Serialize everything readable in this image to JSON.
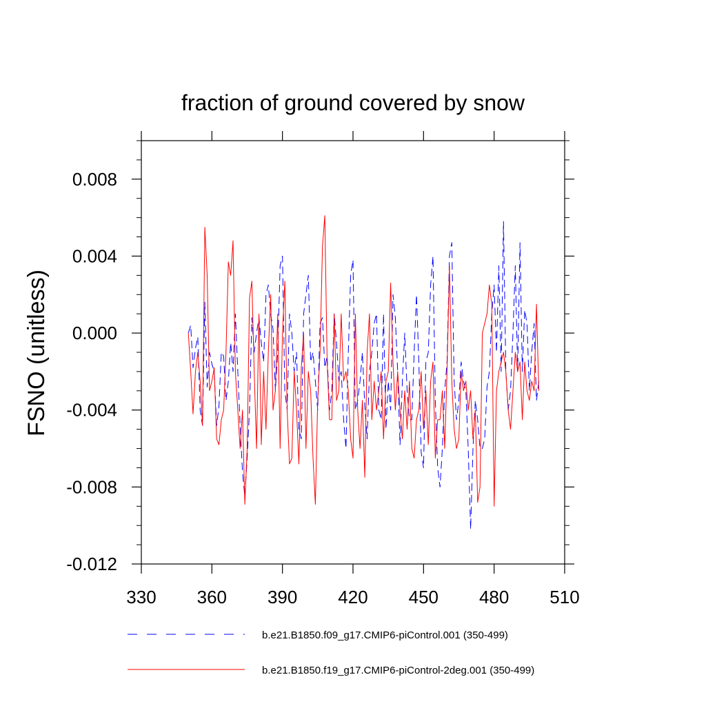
{
  "chart_data": {
    "type": "line",
    "title": "fraction of ground covered by snow",
    "xlabel": "",
    "ylabel": "FSNO  (unitless)",
    "xlim": [
      330,
      510
    ],
    "ylim": [
      -0.012,
      0.01
    ],
    "xticks": [
      330,
      360,
      390,
      420,
      450,
      480,
      510
    ],
    "xtick_labels": [
      "330",
      "360",
      "390",
      "420",
      "450",
      "480",
      "510"
    ],
    "yticks": [
      -0.012,
      -0.008,
      -0.004,
      0.0,
      0.004,
      0.008
    ],
    "ytick_labels": [
      "-0.012",
      "-0.008",
      "-0.004",
      "0.000",
      "0.004",
      "0.008"
    ],
    "grid": false,
    "legend_position": "bottom",
    "series": [
      {
        "name": "b.e21.B1850.f09_g17.CMIP6-piControl.001 (350-499)",
        "color": "#0000ff",
        "dash": "dashed",
        "x": [
          350,
          351,
          352,
          353,
          354,
          355,
          356,
          357,
          358,
          359,
          360,
          361,
          362,
          363,
          364,
          365,
          366,
          367,
          368,
          369,
          370,
          371,
          372,
          373,
          374,
          375,
          376,
          377,
          378,
          379,
          380,
          381,
          382,
          383,
          384,
          385,
          386,
          387,
          388,
          389,
          390,
          391,
          392,
          393,
          394,
          395,
          396,
          397,
          398,
          399,
          400,
          401,
          402,
          403,
          404,
          405,
          406,
          407,
          408,
          409,
          410,
          411,
          412,
          413,
          414,
          415,
          416,
          417,
          418,
          419,
          420,
          421,
          422,
          423,
          424,
          425,
          426,
          427,
          428,
          429,
          430,
          431,
          432,
          433,
          434,
          435,
          436,
          437,
          438,
          439,
          440,
          441,
          442,
          443,
          444,
          445,
          446,
          447,
          448,
          449,
          450,
          451,
          452,
          453,
          454,
          455,
          456,
          457,
          458,
          459,
          460,
          461,
          462,
          463,
          464,
          465,
          466,
          467,
          468,
          469,
          470,
          471,
          472,
          473,
          474,
          475,
          476,
          477,
          478,
          479,
          480,
          481,
          482,
          483,
          484,
          485,
          486,
          487,
          488,
          489,
          490,
          491,
          492,
          493,
          494,
          495,
          496,
          497,
          498,
          499
        ],
        "y": [
          0.0,
          0.0004,
          -0.0018,
          -0.0008,
          -0.0002,
          -0.004,
          -0.0048,
          0.0016,
          -0.0028,
          -0.001,
          -0.0016,
          -0.002,
          -0.0048,
          -0.0038,
          -0.001,
          -0.0012,
          -0.0035,
          -0.0025,
          -0.0005,
          -0.002,
          0.001,
          -0.002,
          -0.0048,
          -0.0072,
          -0.0085,
          -0.0065,
          -0.004,
          0.0008,
          -0.001,
          0.0,
          0.0008,
          -0.0005,
          -0.0015,
          0.002,
          0.0025,
          0.001,
          0.0002,
          -0.003,
          -0.001,
          0.0035,
          0.004,
          -0.003,
          -0.004,
          0.001,
          0.0,
          -0.002,
          -0.001,
          -0.005,
          -0.0055,
          0.001,
          0.002,
          0.003,
          -0.0015,
          -0.001,
          -0.0025,
          -0.004,
          0.0005,
          0.0008,
          -0.0018,
          -0.0012,
          -0.004,
          -0.003,
          0.001,
          -0.0005,
          -0.0025,
          -0.002,
          -0.0045,
          -0.006,
          -0.001,
          0.003,
          0.0038,
          -0.004,
          -0.0035,
          -0.0025,
          -0.001,
          -0.0038,
          -0.0055,
          -0.002,
          -0.001,
          0.0005,
          0.001,
          -0.004,
          -0.0045,
          0.001,
          -0.005,
          -0.0025,
          -0.004,
          0.002,
          0.0008,
          -0.002,
          -0.0058,
          -0.0025,
          0.0,
          -0.003,
          -0.0045,
          -0.0045,
          -0.001,
          0.002,
          -0.0015,
          -0.0062,
          -0.007,
          -0.0015,
          -0.001,
          0.0025,
          0.004,
          -0.0035,
          -0.007,
          -0.008,
          -0.006,
          -0.003,
          -0.0015,
          0.004,
          0.0047,
          -0.0025,
          -0.0045,
          -0.0035,
          -0.0015,
          -0.0025,
          -0.003,
          -0.006,
          -0.0102,
          -0.006,
          -0.0035,
          -0.0045,
          -0.006,
          -0.006,
          -0.0055,
          -0.0028,
          -0.002,
          0.001,
          0.0025,
          -0.001,
          0.0035,
          -0.002,
          0.0058,
          -0.002,
          -0.004,
          -0.003,
          0.0,
          0.0035,
          -0.002,
          0.0047,
          -0.002,
          0.0012,
          0.0005,
          -0.003,
          -0.001,
          0.0005,
          -0.0035,
          -0.0025
        ]
      },
      {
        "name": "b.e21.B1850.f19_g17.CMIP6-piControl-2deg.001 (350-499)",
        "color": "#ff0000",
        "dash": "solid",
        "x": [
          350,
          351,
          352,
          353,
          354,
          355,
          356,
          357,
          358,
          359,
          360,
          361,
          362,
          363,
          364,
          365,
          366,
          367,
          368,
          369,
          370,
          371,
          372,
          373,
          374,
          375,
          376,
          377,
          378,
          379,
          380,
          381,
          382,
          383,
          384,
          385,
          386,
          387,
          388,
          389,
          390,
          391,
          392,
          393,
          394,
          395,
          396,
          397,
          398,
          399,
          400,
          401,
          402,
          403,
          404,
          405,
          406,
          407,
          408,
          409,
          410,
          411,
          412,
          413,
          414,
          415,
          416,
          417,
          418,
          419,
          420,
          421,
          422,
          423,
          424,
          425,
          426,
          427,
          428,
          429,
          430,
          431,
          432,
          433,
          434,
          435,
          436,
          437,
          438,
          439,
          440,
          441,
          442,
          443,
          444,
          445,
          446,
          447,
          448,
          449,
          450,
          451,
          452,
          453,
          454,
          455,
          456,
          457,
          458,
          459,
          460,
          461,
          462,
          463,
          464,
          465,
          466,
          467,
          468,
          469,
          470,
          471,
          472,
          473,
          474,
          475,
          476,
          477,
          478,
          479,
          480,
          481,
          482,
          483,
          484,
          485,
          486,
          487,
          488,
          489,
          490,
          491,
          492,
          493,
          494,
          495,
          496,
          497,
          498,
          499
        ],
        "y": [
          0.0,
          -0.002,
          -0.0042,
          -0.002,
          -0.001,
          -0.0025,
          -0.0048,
          0.0055,
          0.003,
          -0.003,
          -0.0025,
          -0.0018,
          -0.0055,
          -0.0058,
          -0.0045,
          -0.004,
          -0.001,
          0.0037,
          0.003,
          0.0048,
          -0.002,
          -0.004,
          -0.006,
          -0.004,
          -0.0089,
          -0.006,
          0.0018,
          0.0027,
          -0.002,
          -0.006,
          0.001,
          -0.0058,
          -0.002,
          -0.005,
          -0.001,
          0.002,
          -0.004,
          -0.003,
          0.001,
          -0.006,
          0.0,
          0.0027,
          -0.004,
          -0.0068,
          -0.0065,
          -0.002,
          -0.004,
          -0.0068,
          -0.0018,
          0.0,
          -0.006,
          -0.002,
          -0.003,
          -0.0065,
          -0.0089,
          -0.0035,
          -0.001,
          0.0045,
          0.0061,
          -0.0015,
          -0.0045,
          -0.0045,
          0.001,
          -0.0035,
          -0.003,
          0.001,
          -0.0025,
          -0.002,
          -0.003,
          -0.0055,
          -0.0065,
          0.001,
          -0.004,
          -0.006,
          -0.0035,
          -0.0075,
          -0.001,
          0.001,
          -0.0045,
          -0.0025,
          -0.004,
          -0.003,
          -0.002,
          -0.0055,
          -0.0025,
          -0.002,
          0.0026,
          -0.0015,
          -0.004,
          -0.002,
          -0.004,
          -0.0055,
          -0.003,
          -0.005,
          -0.0025,
          -0.006,
          -0.0065,
          -0.0045,
          -0.004,
          -0.002,
          -0.005,
          -0.003,
          -0.0058,
          -0.0025,
          -0.0015,
          -0.0065,
          -0.0045,
          -0.0045,
          -0.003,
          -0.006,
          -0.002,
          0.0035,
          -0.0025,
          -0.005,
          -0.006,
          -0.0055,
          -0.002,
          -0.003,
          -0.0025,
          -0.004,
          -0.003,
          -0.0055,
          -0.004,
          -0.0088,
          -0.008,
          0.0,
          0.0005,
          0.001,
          0.0025,
          0.0015,
          -0.009,
          -0.003,
          -0.002,
          -0.0015,
          -0.001,
          -0.002,
          -0.004,
          -0.005,
          -0.003,
          -0.001,
          -0.002,
          -0.0015,
          -0.0045,
          -0.0015,
          -0.003,
          -0.0035,
          -0.0025,
          -0.003,
          0.0015,
          -0.003
        ]
      }
    ]
  }
}
